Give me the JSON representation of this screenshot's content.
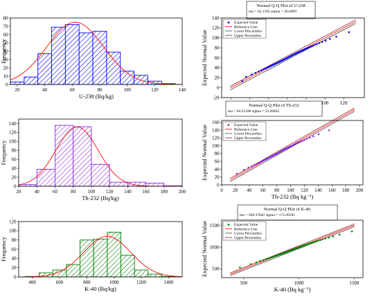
{
  "chart_data": [
    {
      "type": "bar",
      "kind": "histogram",
      "xlabel": "U-238 (Bq/kg)",
      "ylabel": "Frequency",
      "xlim": [
        15,
        140
      ],
      "ylim": [
        0,
        80
      ],
      "xticks": [
        20,
        40,
        60,
        80,
        100,
        120,
        140
      ],
      "yticks": [
        0,
        10,
        20,
        30,
        40,
        50,
        60,
        70,
        80
      ],
      "bin_edges": [
        15,
        25,
        35,
        45,
        55,
        65,
        75,
        85,
        95,
        105,
        115,
        125,
        135
      ],
      "values": [
        3,
        9,
        37,
        69,
        72,
        62,
        64,
        39,
        16,
        11,
        4,
        1
      ],
      "normal_curve": {
        "mean": 62.1595,
        "sigma": 20.6099
      },
      "bar_color": "#0000ff",
      "curve_color": "#ff0000"
    },
    {
      "type": "scatter",
      "kind": "qq-plot",
      "title": "Normal Q-Q Plot of U-238",
      "stats_text": "mu = 62.1595   sigma = 20.6099",
      "mean": 62.1595,
      "sigma": 20.6099,
      "xlabel": "U-238 (Bq kg⁻¹)",
      "ylabel": "Expected Normal Value",
      "xlim": [
        -10,
        142
      ],
      "ylim": [
        -20,
        140
      ],
      "xticks": [
        0,
        20,
        40,
        60,
        80,
        100,
        120
      ],
      "yticks": [
        -20,
        0,
        20,
        40,
        60,
        80,
        100,
        120,
        140
      ],
      "legend": [
        "Expected Value",
        "Reference Line",
        "Lower Percentiles",
        "Upper Percentiles"
      ],
      "point_color": "#0000ff",
      "band_colors": {
        "reference": "#ff0000",
        "lower": "#444444",
        "upper": "#8b1a1a"
      },
      "points_x_range": [
        12,
        132
      ]
    },
    {
      "type": "bar",
      "kind": "histogram",
      "xlabel": "Th-232 (Bq/kg)",
      "ylabel": "Frequency",
      "xlim": [
        20,
        200
      ],
      "ylim": [
        0,
        150
      ],
      "xticks": [
        20,
        40,
        60,
        80,
        100,
        120,
        140,
        160,
        180,
        200
      ],
      "yticks": [
        0,
        20,
        40,
        60,
        80,
        100,
        120,
        140
      ],
      "bin_edges": [
        20,
        40,
        60,
        80,
        100,
        120,
        140,
        160,
        180,
        200
      ],
      "values": [
        4,
        38,
        136,
        133,
        49,
        9,
        9,
        7,
        1
      ],
      "normal_curve": {
        "mean": 84.21188,
        "sigma": 23.26845
      },
      "bar_color": "#8a2be2",
      "curve_color": "#ff0000"
    },
    {
      "type": "scatter",
      "kind": "qq-plot",
      "title": "Normal Q-Q Plot of Th-232",
      "stats_text": "mu = 84.21188   sigma = 23.26845",
      "mean": 84.21188,
      "sigma": 23.26845,
      "xlabel": "Th-232 (Bq kg⁻¹)",
      "ylabel": "Expected Normal Value",
      "xlim": [
        0,
        205
      ],
      "ylim": [
        0,
        165
      ],
      "xticks": [
        0,
        20,
        40,
        60,
        80,
        100,
        120,
        140,
        160,
        180,
        200
      ],
      "yticks": [
        0,
        20,
        40,
        60,
        80,
        100,
        120,
        140,
        160
      ],
      "legend": [
        "Expected Value",
        "Reference Line",
        "Lower Percentiles",
        "Upper Percentiles"
      ],
      "point_color": "#8a2be2",
      "band_colors": {
        "reference": "#ff0000",
        "lower": "#444444",
        "upper": "#8b1a1a"
      },
      "points_x_range": [
        22,
        192
      ]
    },
    {
      "type": "bar",
      "kind": "histogram",
      "xlabel": "K-40 (Bq/kg)",
      "ylabel": "Frequency",
      "xlim": [
        300,
        1500
      ],
      "ylim": [
        0,
        120
      ],
      "xticks": [
        400,
        600,
        800,
        1000,
        1200,
        1400
      ],
      "yticks": [
        0,
        20,
        40,
        60,
        80,
        100,
        120
      ],
      "bin_edges": [
        350,
        450,
        550,
        650,
        750,
        850,
        950,
        1050,
        1150,
        1250,
        1350,
        1450
      ],
      "values": [
        1,
        9,
        15,
        27,
        80,
        82,
        97,
        47,
        15,
        6,
        1
      ],
      "normal_curve": {
        "mean": 949.37842,
        "sigma": 172.49105
      },
      "bar_color": "#008000",
      "curve_color": "#ff0000"
    },
    {
      "type": "scatter",
      "kind": "qq-plot",
      "title": "Normal Q-Q Plot of K-40.",
      "stats_text": "mu = 949.37842   sigma = 172.49105",
      "mean": 949.37842,
      "sigma": 172.49105,
      "xlabel": "K-40 (Bq kg⁻¹)",
      "ylabel": "Expected Normal Value",
      "xlim": [
        300,
        1580
      ],
      "ylim": [
        300,
        1620
      ],
      "xticks": [
        500,
        1000,
        1500
      ],
      "yticks": [
        500,
        1000,
        1500
      ],
      "legend": [
        "Expected Value",
        "Reference Line",
        "Lower Percentiles",
        "Upper Percentiles"
      ],
      "point_color": "#008000",
      "band_colors": {
        "reference": "#ff0000",
        "lower": "#444444",
        "upper": "#8b1a1a"
      },
      "points_x_range": [
        400,
        1480
      ]
    }
  ]
}
